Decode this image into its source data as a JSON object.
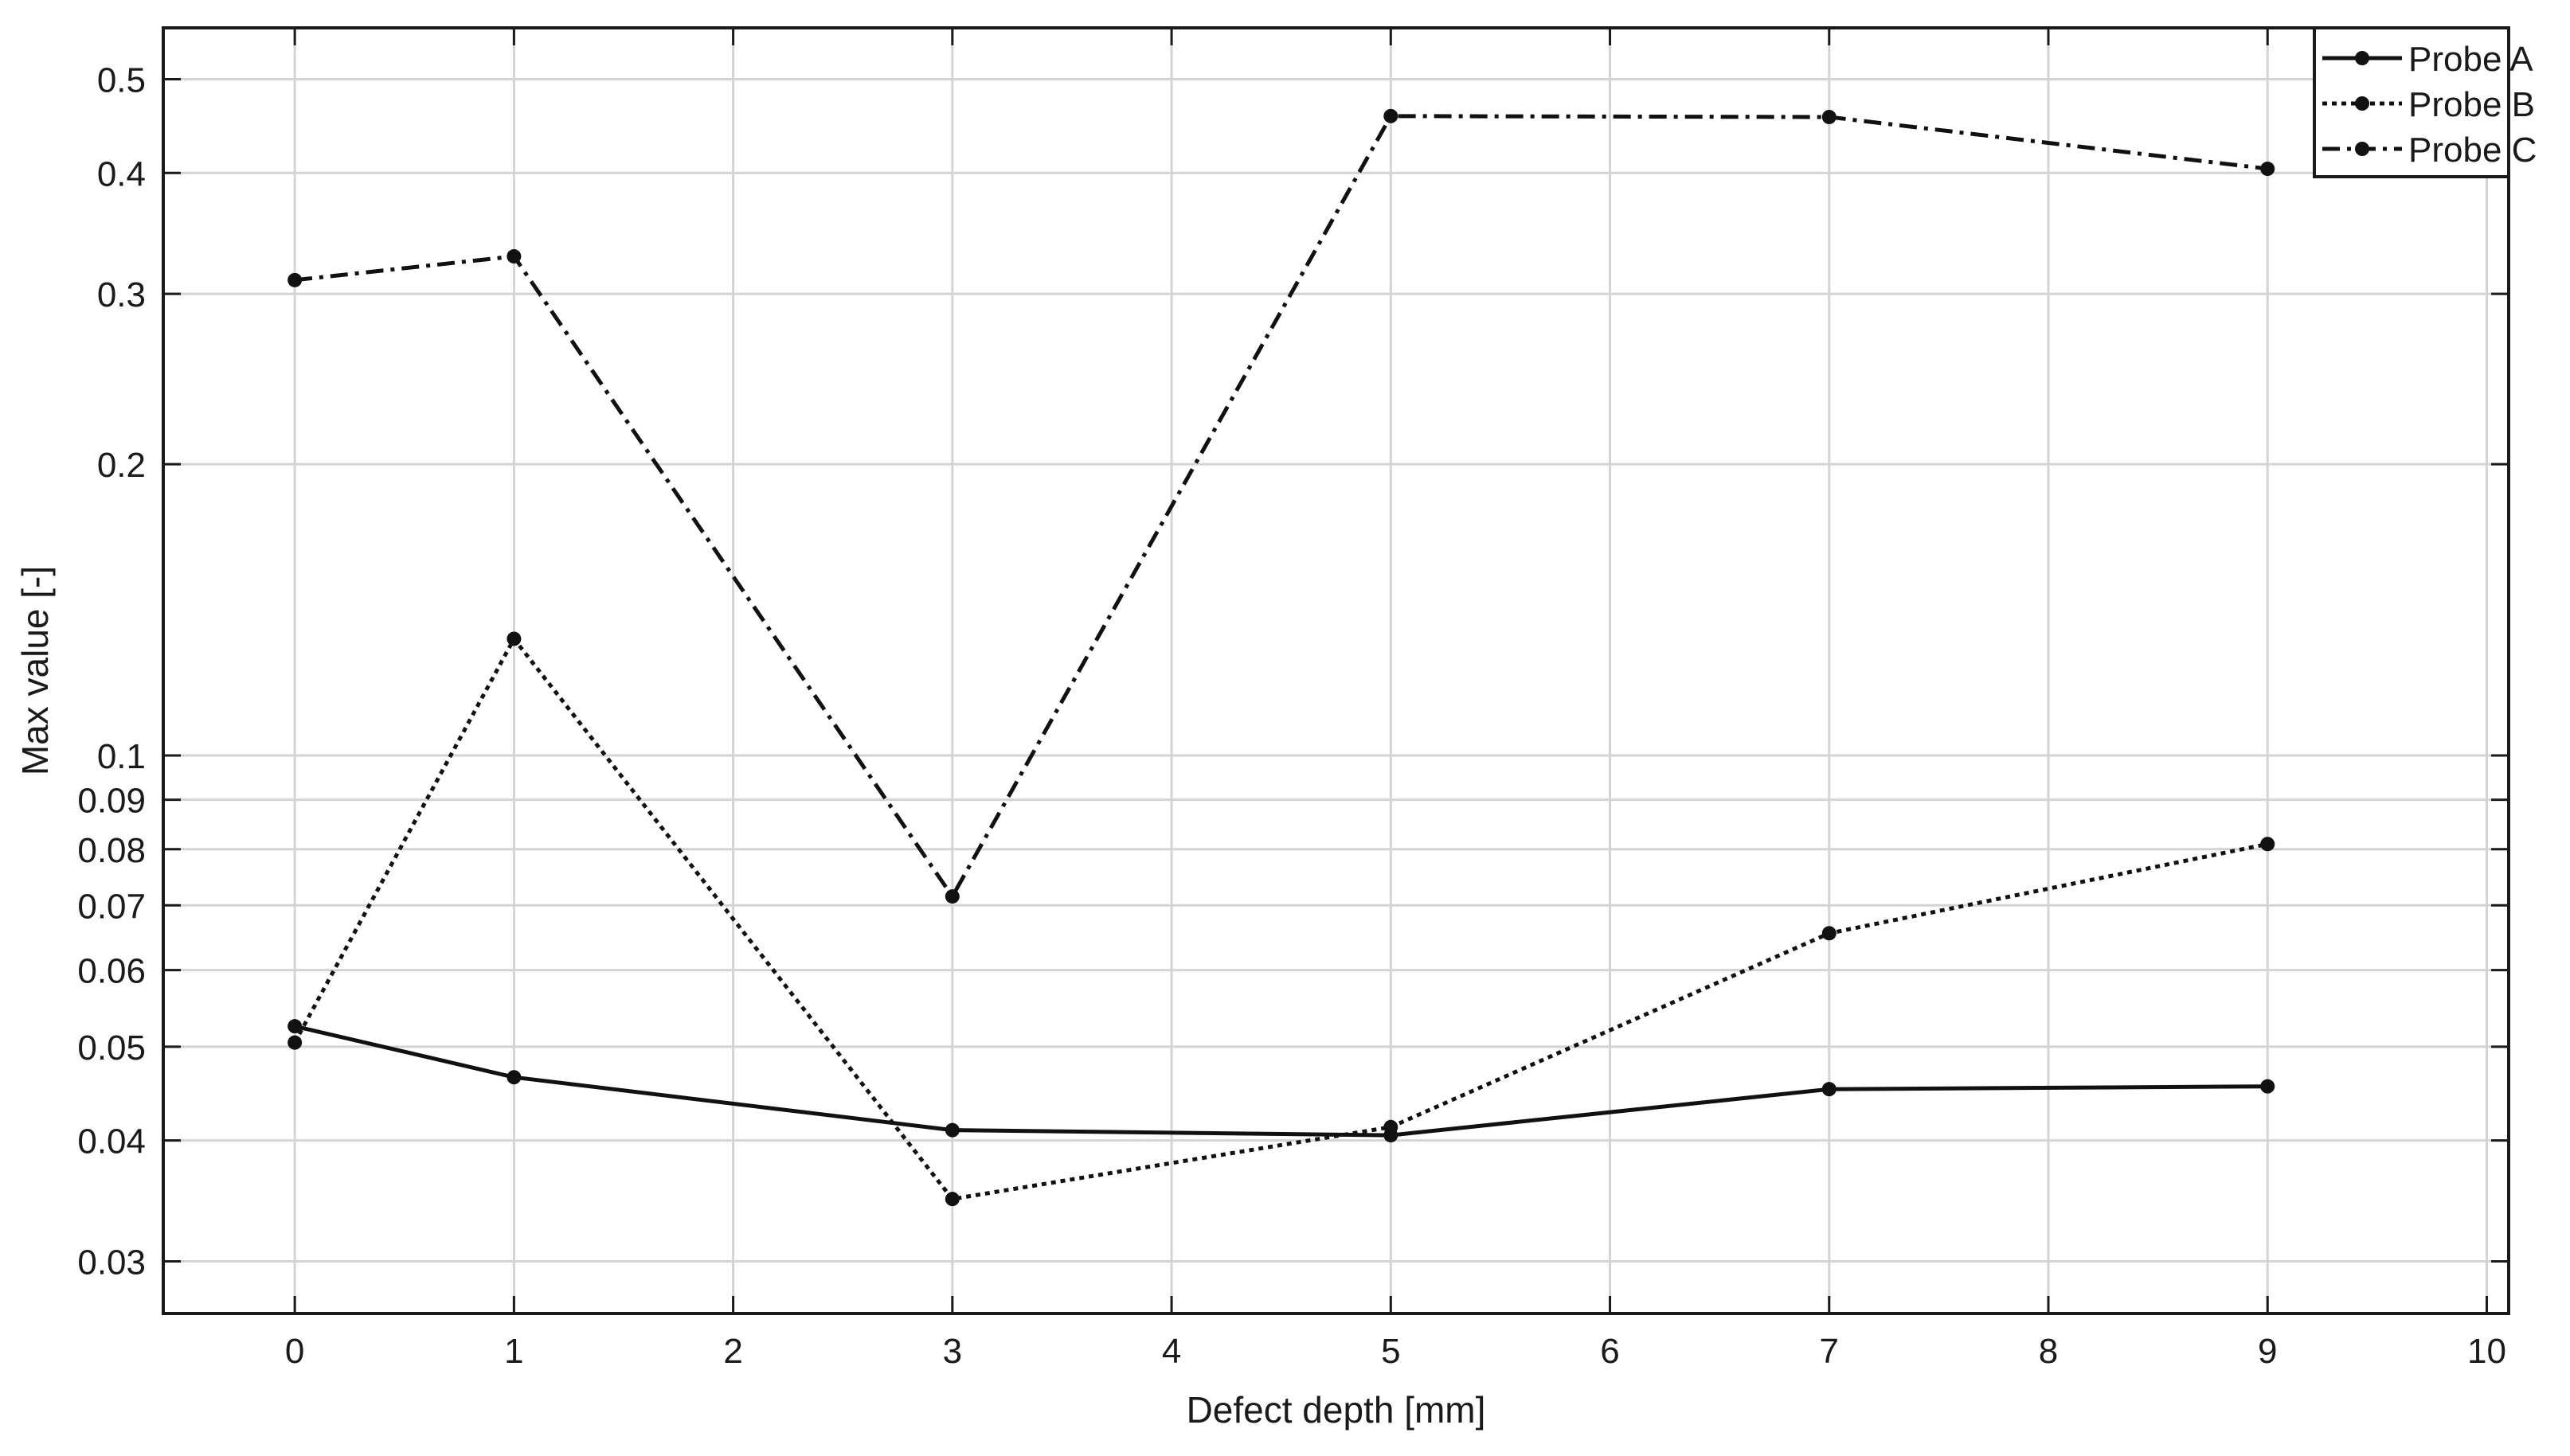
{
  "chart_data": {
    "type": "line",
    "xlabel": "Defect depth [mm]",
    "ylabel": "Max value [-]",
    "xlim": [
      -0.6,
      10.1
    ],
    "ylim": [
      0.0265,
      0.565
    ],
    "yscale": "log",
    "x_ticks": [
      0,
      1,
      2,
      3,
      4,
      5,
      6,
      7,
      8,
      9,
      10
    ],
    "x_tick_labels": [
      "0",
      "1",
      "2",
      "3",
      "4",
      "5",
      "6",
      "7",
      "8",
      "9",
      "10"
    ],
    "y_ticks": [
      0.03,
      0.04,
      0.05,
      0.06,
      0.07,
      0.08,
      0.09,
      0.1,
      0.2,
      0.3,
      0.4,
      0.5
    ],
    "y_tick_labels": [
      "0.03",
      "0.04",
      "0.05",
      "0.06",
      "0.07",
      "0.08",
      "0.09",
      "0.1",
      "0.2",
      "0.3",
      "0.4",
      "0.5"
    ],
    "grid": true,
    "legend_position": "top-right",
    "x": [
      0,
      1,
      3,
      5,
      7,
      9
    ],
    "series": [
      {
        "name": "Probe A",
        "dash": "solid",
        "values": [
          0.0525,
          0.0465,
          0.041,
          0.0405,
          0.0452,
          0.0455
        ]
      },
      {
        "name": "Probe B",
        "dash": "dotted",
        "values": [
          0.0505,
          0.132,
          0.0348,
          0.0413,
          0.0655,
          0.081
        ]
      },
      {
        "name": "Probe C",
        "dash": "dashdot",
        "values": [
          0.31,
          0.328,
          0.0715,
          0.458,
          0.457,
          0.404
        ]
      }
    ]
  }
}
